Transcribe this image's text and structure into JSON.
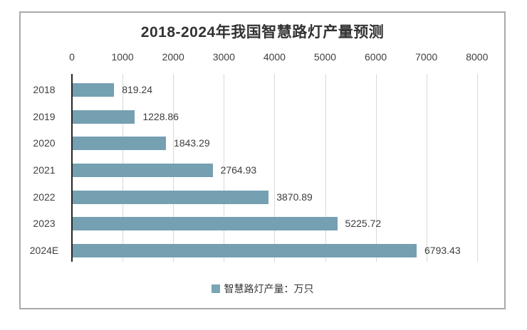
{
  "window": {
    "background_color": "#ffffff",
    "border_color": "#a9a9a9"
  },
  "chart_data": {
    "type": "bar",
    "orientation": "horizontal",
    "title": "2018-2024年我国智慧路灯产量预测",
    "categories": [
      "2018",
      "2019",
      "2020",
      "2021",
      "2022",
      "2023",
      "2024E"
    ],
    "values": [
      819.24,
      1228.86,
      1843.29,
      2764.93,
      3870.89,
      5225.72,
      6793.43
    ],
    "value_labels": [
      "819.24",
      "1228.86",
      "1843.29",
      "2764.93",
      "3870.89",
      "5225.72",
      "6793.43"
    ],
    "xlabel": "",
    "ylabel": "",
    "xlim": [
      0,
      8000
    ],
    "x_ticks": [
      0,
      1000,
      2000,
      3000,
      4000,
      5000,
      6000,
      7000,
      8000
    ],
    "grid": true,
    "axis_position": "top",
    "legend": {
      "label": "智慧路灯产量：万只",
      "position": "bottom",
      "marker": "square-icon",
      "marker_color": "#79a5b5"
    },
    "colors": {
      "bar": "#74a0b2",
      "grid": "#d9d9d9",
      "axis": "#262626",
      "text": "#404040",
      "title": "#333333"
    }
  }
}
